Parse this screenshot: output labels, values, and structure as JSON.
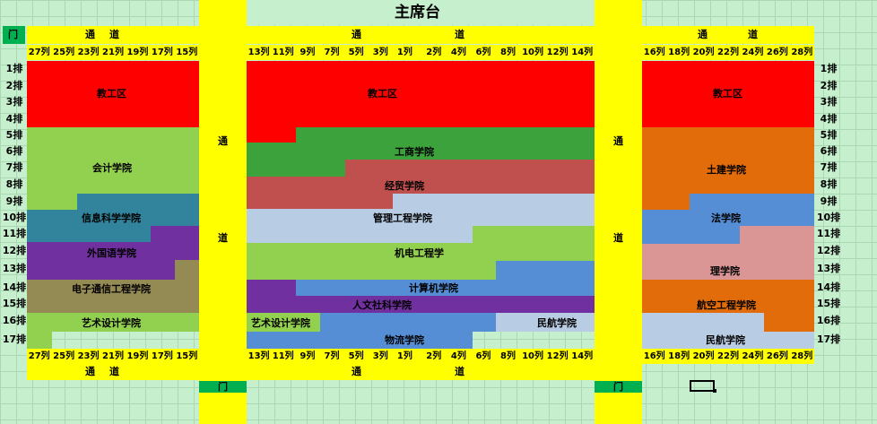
{
  "stage": "主席台",
  "door": "门",
  "aisle": "通",
  "aisle2": "道",
  "cols_left": [
    "27列",
    "25列",
    "23列",
    "21列",
    "19列",
    "17列",
    "15列"
  ],
  "cols_center_left": [
    "13列",
    "11列",
    "9列",
    "7列",
    "5列",
    "3列",
    "1列"
  ],
  "cols_center_right": [
    "2列",
    "4列",
    "6列",
    "8列",
    "10列",
    "12列",
    "14列"
  ],
  "cols_right": [
    "16列",
    "18列",
    "20列",
    "22列",
    "24列",
    "26列",
    "28列"
  ],
  "rows": [
    "1排",
    "2排",
    "3排",
    "4排",
    "5排",
    "6排",
    "7排",
    "8排",
    "9排",
    "10排",
    "11排",
    "12排",
    "13排",
    "14排",
    "15排",
    "16排",
    "17排"
  ],
  "labels": {
    "staff": "教工区",
    "accounting": "会计学院",
    "infosci": "信息科学学院",
    "foreign": "外国语学院",
    "electronic": "电子通信工程学院",
    "art": "艺术设计学院",
    "business": "工商学院",
    "economics": "经贸学院",
    "management": "管理工程学院",
    "mechanical": "机电工程学",
    "computer": "计算机学院",
    "humanities": "人文社科学院",
    "art2": "艺术设计学院",
    "aviation_civil": "民航学院",
    "logistics": "物流学院",
    "civil": "土建学院",
    "law": "法学院",
    "science": "理学院",
    "aerospace": "航空工程学院",
    "civil_aviation": "民航学院"
  },
  "colors": {
    "yellow": "#ffff00",
    "red": "#ff0000",
    "lightgreen": "#92d050",
    "darkgreen": "#3ca33c",
    "teal": "#31849b",
    "purple": "#7030a0",
    "olive": "#948a54",
    "brick": "#c0504d",
    "lightblue": "#b8cce4",
    "blue": "#558ed5",
    "orange": "#e26b0a",
    "pink": "#da9694",
    "doorgreen": "#00b050"
  }
}
